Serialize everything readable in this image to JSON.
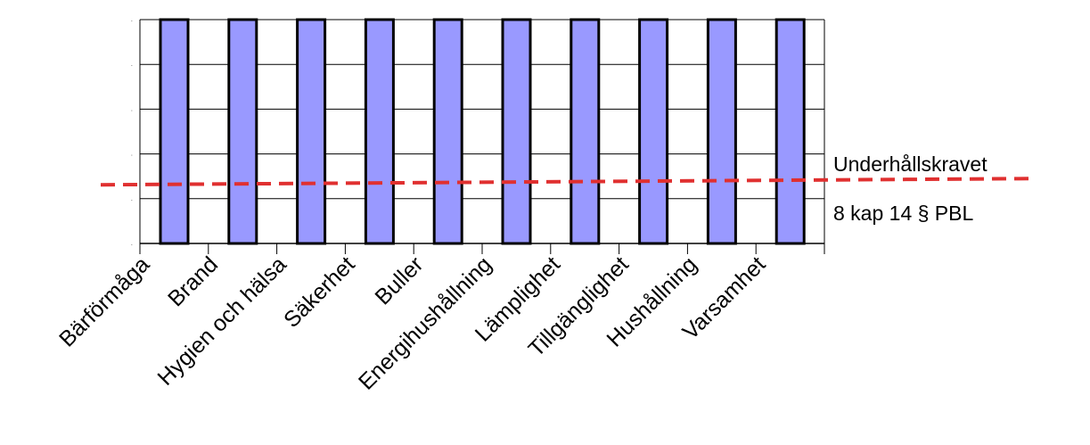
{
  "chart_data": {
    "type": "bar",
    "categories": [
      "Bärförmåga",
      "Brand",
      "Hygien och hälsa",
      "Säkerhet",
      "Buller",
      "Energihushållning",
      "Lämplighet",
      "Tillgänglighet",
      "Hushållning",
      "Varsamhet"
    ],
    "values": [
      5,
      5,
      5,
      5,
      5,
      5,
      5,
      5,
      5,
      5
    ],
    "ylim": [
      0,
      5
    ],
    "grid": true,
    "title": "",
    "xlabel": "",
    "ylabel": "",
    "colors": {
      "bar": "#9999ff",
      "bar_edge": "#000000",
      "reference_line": "#e03030",
      "grid": "#000000"
    },
    "reference_line": {
      "value": 1.35,
      "style": "dashed",
      "label_above": "Underhållskravet",
      "label_below": "8 kap 14 § PBL"
    }
  }
}
